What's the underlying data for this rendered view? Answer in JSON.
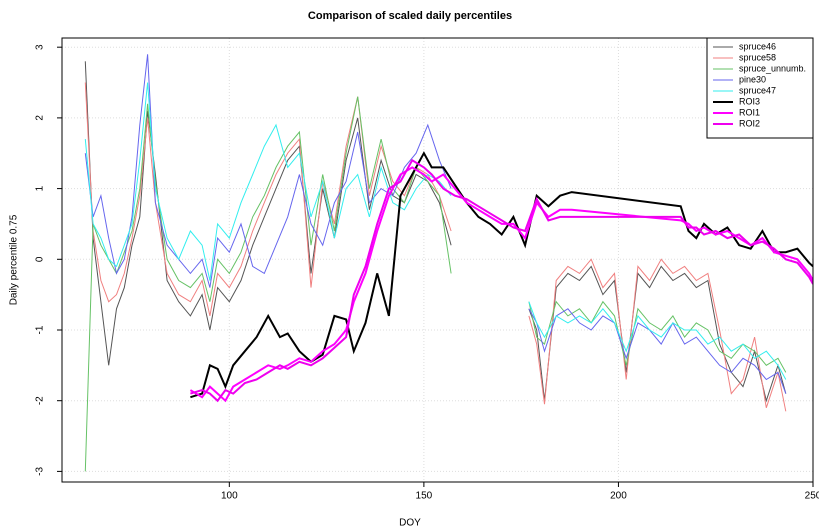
{
  "chart_data": {
    "type": "line",
    "title": "Comparison of scaled daily percentiles",
    "x_label": "DOY",
    "y_label": "Daily percentile 0.75",
    "xlim": [
      57,
      250
    ],
    "ylim": [
      -3.15,
      3.13
    ],
    "xticks": [
      100,
      150,
      200,
      250
    ],
    "yticks": [
      -3,
      -2,
      -1,
      0,
      1,
      2,
      3
    ],
    "grid": true,
    "legend": "topright",
    "series": [
      {
        "name": "spruce46",
        "color": "#555555",
        "line_width": 1,
        "x": [
          63,
          65,
          67,
          69,
          71,
          73,
          75,
          77,
          79,
          81,
          84,
          87,
          90,
          93,
          95,
          97,
          100,
          103,
          106,
          109,
          112,
          115,
          118,
          121,
          124,
          127,
          130,
          133,
          136,
          139,
          142,
          145,
          148,
          151,
          154,
          157,
          167,
          177,
          179,
          181,
          184,
          187,
          190,
          193,
          196,
          199,
          202,
          205,
          208,
          211,
          214,
          217,
          220,
          223,
          226,
          229,
          232,
          235,
          238,
          241,
          243
        ],
        "values": [
          2.8,
          0.3,
          -0.6,
          -1.5,
          -0.7,
          -0.4,
          0.2,
          0.6,
          2.1,
          1.2,
          -0.3,
          -0.6,
          -0.8,
          -0.5,
          -1.0,
          -0.4,
          -0.6,
          -0.3,
          0.2,
          0.6,
          1.0,
          1.4,
          1.6,
          -0.2,
          1.0,
          0.3,
          1.4,
          2.0,
          0.7,
          1.4,
          0.9,
          0.8,
          1.2,
          1.1,
          0.8,
          0.2,
          null,
          -0.7,
          -1.0,
          -2.0,
          -0.4,
          -0.2,
          -0.3,
          -0.1,
          -0.5,
          -0.3,
          -1.6,
          -0.2,
          -0.4,
          -0.1,
          -0.3,
          -0.2,
          -0.4,
          -0.3,
          -1.2,
          -1.6,
          -1.8,
          -1.3,
          -2.0,
          -1.5,
          -1.9
        ]
      },
      {
        "name": "spruce58",
        "color": "#f08080",
        "line_width": 1,
        "x": [
          63,
          65,
          67,
          69,
          71,
          73,
          75,
          77,
          79,
          81,
          84,
          87,
          90,
          93,
          95,
          97,
          100,
          103,
          106,
          109,
          112,
          115,
          118,
          121,
          124,
          127,
          130,
          133,
          136,
          139,
          142,
          145,
          148,
          151,
          154,
          157,
          167,
          177,
          179,
          181,
          184,
          187,
          190,
          193,
          196,
          199,
          202,
          205,
          208,
          211,
          214,
          217,
          220,
          223,
          226,
          229,
          232,
          235,
          238,
          241,
          243
        ],
        "values": [
          2.5,
          0.4,
          -0.3,
          -0.6,
          -0.5,
          -0.2,
          0.3,
          0.9,
          2.0,
          0.8,
          -0.2,
          -0.5,
          -0.6,
          -0.3,
          -0.8,
          -0.2,
          -0.4,
          -0.1,
          0.4,
          0.8,
          1.2,
          1.5,
          1.7,
          -0.4,
          1.1,
          0.5,
          1.6,
          2.3,
          0.9,
          1.6,
          1.1,
          0.9,
          1.3,
          1.2,
          0.9,
          0.4,
          null,
          -0.8,
          -1.2,
          -2.05,
          -0.3,
          -0.1,
          -0.2,
          0.0,
          -0.4,
          -0.2,
          -1.7,
          -0.1,
          -0.3,
          0.0,
          -0.2,
          -0.1,
          -0.3,
          -0.2,
          -1.0,
          -1.9,
          -1.7,
          -1.1,
          -2.1,
          -1.6,
          -2.15
        ]
      },
      {
        "name": "spruce_unnumb.",
        "color": "#66c266",
        "line_width": 1,
        "x": [
          63,
          65,
          67,
          69,
          71,
          73,
          75,
          77,
          79,
          81,
          84,
          87,
          90,
          93,
          95,
          97,
          100,
          103,
          106,
          109,
          112,
          115,
          118,
          121,
          124,
          127,
          130,
          133,
          136,
          139,
          142,
          145,
          148,
          151,
          154,
          157,
          167,
          177,
          179,
          181,
          184,
          187,
          190,
          193,
          196,
          199,
          202,
          205,
          208,
          211,
          214,
          217,
          220,
          223,
          226,
          229,
          232,
          235,
          238,
          241,
          243
        ],
        "values": [
          -3.0,
          0.5,
          0.2,
          0.0,
          -0.2,
          0.1,
          0.4,
          1.0,
          2.2,
          1.1,
          0.0,
          -0.3,
          -0.4,
          -0.2,
          -0.6,
          0.0,
          -0.2,
          0.1,
          0.6,
          0.9,
          1.3,
          1.6,
          1.8,
          0.2,
          1.2,
          0.4,
          1.5,
          2.3,
          1.0,
          1.7,
          1.0,
          0.8,
          1.3,
          1.1,
          0.9,
          -0.2,
          null,
          -0.6,
          -1.1,
          -1.2,
          -0.6,
          -0.8,
          -0.7,
          -0.9,
          -0.6,
          -0.8,
          -1.5,
          -0.7,
          -0.9,
          -1.0,
          -0.8,
          -1.1,
          -0.9,
          -1.0,
          -1.3,
          -1.4,
          -1.2,
          -1.3,
          -1.5,
          -1.4,
          -1.6
        ]
      },
      {
        "name": "pine30",
        "color": "#6666ee",
        "line_width": 1,
        "x": [
          63,
          65,
          67,
          69,
          71,
          73,
          75,
          77,
          79,
          81,
          84,
          87,
          90,
          93,
          95,
          97,
          100,
          103,
          106,
          109,
          112,
          115,
          118,
          121,
          124,
          127,
          130,
          133,
          136,
          139,
          142,
          145,
          148,
          151,
          154,
          157,
          167,
          177,
          179,
          181,
          184,
          187,
          190,
          193,
          196,
          199,
          202,
          205,
          208,
          211,
          214,
          217,
          220,
          223,
          226,
          229,
          232,
          235,
          238,
          241,
          243
        ],
        "values": [
          1.5,
          0.6,
          0.9,
          0.3,
          -0.2,
          0.0,
          0.6,
          1.9,
          2.9,
          0.8,
          0.2,
          0.0,
          -0.2,
          0.0,
          -0.4,
          0.3,
          0.1,
          0.5,
          -0.1,
          -0.2,
          0.2,
          0.6,
          1.2,
          0.5,
          0.2,
          0.8,
          1.1,
          1.8,
          0.8,
          1.0,
          0.9,
          1.3,
          1.5,
          1.9,
          1.4,
          1.0,
          null,
          -0.7,
          -0.9,
          -1.3,
          -0.8,
          -0.7,
          -0.9,
          -1.0,
          -0.8,
          -0.9,
          -1.4,
          -0.9,
          -1.0,
          -1.2,
          -0.9,
          -1.2,
          -1.1,
          -1.3,
          -1.5,
          -1.6,
          -1.4,
          -1.5,
          -1.7,
          -1.6,
          -1.9
        ]
      },
      {
        "name": "spruce47",
        "color": "#33eeee",
        "line_width": 1,
        "x": [
          63,
          65,
          67,
          69,
          71,
          73,
          75,
          77,
          79,
          81,
          84,
          87,
          90,
          93,
          95,
          97,
          100,
          103,
          106,
          109,
          112,
          115,
          118,
          121,
          124,
          127,
          130,
          133,
          136,
          139,
          142,
          145,
          148,
          151,
          154,
          157,
          167,
          177,
          179,
          181,
          184,
          187,
          190,
          193,
          196,
          199,
          202,
          205,
          208,
          211,
          214,
          217,
          220,
          223,
          226,
          229,
          232,
          235,
          238,
          241,
          243
        ],
        "values": [
          1.7,
          0.5,
          0.3,
          0.0,
          -0.1,
          0.2,
          0.5,
          1.4,
          2.5,
          1.0,
          0.3,
          0.0,
          0.4,
          0.2,
          -0.3,
          0.5,
          0.3,
          0.8,
          1.2,
          1.6,
          1.9,
          1.3,
          1.5,
          0.6,
          1.1,
          0.3,
          1.0,
          1.2,
          0.6,
          1.3,
          0.8,
          0.7,
          1.0,
          1.2,
          1.1,
          0.9,
          null,
          -0.6,
          -0.9,
          -1.1,
          -0.8,
          -0.9,
          -0.8,
          -0.9,
          -0.7,
          -0.9,
          -1.3,
          -0.8,
          -1.0,
          -1.1,
          -0.9,
          -1.0,
          -1.0,
          -1.2,
          -1.1,
          -1.3,
          -1.2,
          -1.4,
          -1.3,
          -1.5,
          -1.7
        ]
      },
      {
        "name": "ROI3",
        "color": "#000000",
        "line_width": 2,
        "x": [
          90,
          93,
          95,
          97,
          99,
          101,
          104,
          107,
          110,
          113,
          115,
          118,
          121,
          124,
          127,
          130,
          132,
          135,
          138,
          141,
          144,
          147,
          150,
          152,
          155,
          158,
          161,
          164,
          167,
          170,
          173,
          176,
          179,
          182,
          185,
          188,
          216,
          218,
          220,
          222,
          225,
          228,
          231,
          234,
          237,
          240,
          243,
          246,
          249,
          250
        ],
        "values": [
          -1.95,
          -1.9,
          -1.5,
          -1.55,
          -1.8,
          -1.5,
          -1.3,
          -1.1,
          -0.8,
          -1.1,
          -1.05,
          -1.3,
          -1.45,
          -1.35,
          -0.8,
          -0.85,
          -1.3,
          -0.9,
          -0.2,
          -0.8,
          0.9,
          1.2,
          1.5,
          1.3,
          1.3,
          1.05,
          0.8,
          0.6,
          0.5,
          0.35,
          0.6,
          0.2,
          0.9,
          0.75,
          0.9,
          0.95,
          0.75,
          0.4,
          0.3,
          0.5,
          0.35,
          0.45,
          0.2,
          0.15,
          0.4,
          0.1,
          0.1,
          0.15,
          -0.05,
          -0.1
        ]
      },
      {
        "name": "ROI1",
        "color": "#ff00ff",
        "line_width": 2,
        "x": [
          90,
          93,
          95,
          97,
          99,
          101,
          104,
          107,
          110,
          113,
          115,
          118,
          121,
          124,
          127,
          130,
          132,
          135,
          138,
          141,
          144,
          147,
          150,
          152,
          155,
          158,
          161,
          164,
          167,
          170,
          173,
          176,
          179,
          182,
          185,
          188,
          216,
          218,
          220,
          222,
          225,
          228,
          231,
          234,
          237,
          240,
          243,
          246,
          249,
          250
        ],
        "values": [
          -1.85,
          -1.95,
          -1.8,
          -1.9,
          -2.0,
          -1.8,
          -1.7,
          -1.6,
          -1.5,
          -1.55,
          -1.5,
          -1.4,
          -1.45,
          -1.3,
          -1.2,
          -1.0,
          -0.6,
          -0.2,
          0.4,
          0.9,
          1.2,
          1.3,
          1.2,
          1.1,
          1.2,
          1.0,
          0.8,
          0.7,
          0.6,
          0.5,
          0.5,
          0.3,
          0.8,
          0.6,
          0.7,
          0.7,
          0.55,
          0.5,
          0.4,
          0.45,
          0.35,
          0.4,
          0.3,
          0.2,
          0.3,
          0.1,
          0.05,
          0.0,
          -0.2,
          -0.3
        ]
      },
      {
        "name": "ROI2",
        "color": "#ee00ee",
        "line_width": 2,
        "x": [
          90,
          93,
          95,
          97,
          99,
          101,
          104,
          107,
          110,
          113,
          115,
          118,
          121,
          124,
          127,
          130,
          132,
          135,
          138,
          141,
          144,
          147,
          150,
          152,
          155,
          158,
          161,
          164,
          167,
          170,
          173,
          176,
          179,
          182,
          185,
          188,
          216,
          218,
          220,
          222,
          225,
          228,
          231,
          234,
          237,
          240,
          243,
          246,
          249,
          250
        ],
        "values": [
          -1.9,
          -1.85,
          -1.9,
          -2.0,
          -1.85,
          -1.9,
          -1.75,
          -1.7,
          -1.6,
          -1.5,
          -1.55,
          -1.45,
          -1.5,
          -1.4,
          -1.25,
          -1.1,
          -0.5,
          -0.1,
          0.5,
          1.0,
          1.1,
          1.4,
          1.3,
          1.2,
          1.0,
          0.9,
          0.85,
          0.75,
          0.65,
          0.55,
          0.45,
          0.4,
          0.85,
          0.55,
          0.6,
          0.6,
          0.6,
          0.45,
          0.45,
          0.35,
          0.4,
          0.3,
          0.35,
          0.2,
          0.25,
          0.15,
          0.0,
          -0.05,
          -0.25,
          -0.35
        ]
      }
    ]
  }
}
